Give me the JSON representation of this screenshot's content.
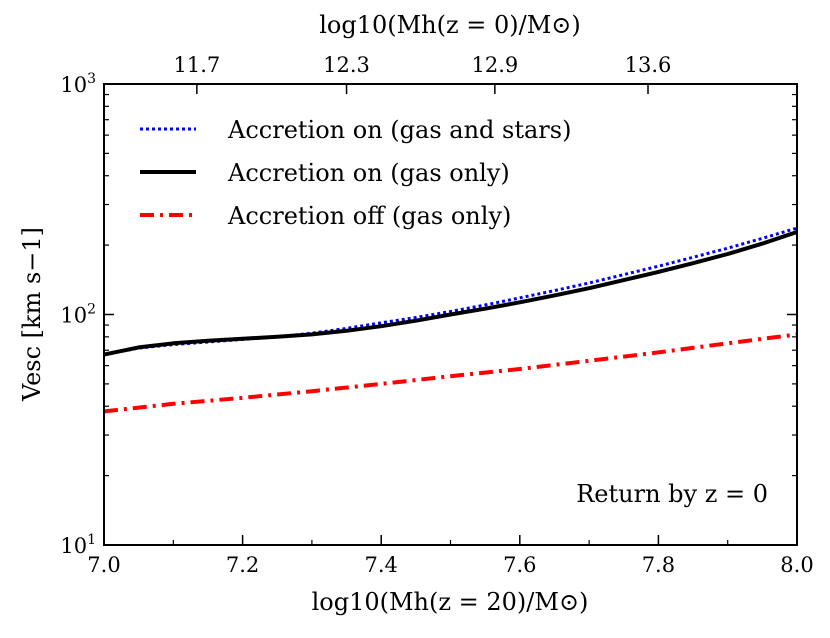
{
  "chart_data": {
    "type": "line",
    "yscale": "log",
    "xlim": [
      7.0,
      8.0
    ],
    "ylim": [
      10,
      1000
    ],
    "xlabel": "log10(Mh(z = 20)/M⊙)",
    "ylabel": "Vesc [km s−1]",
    "top_xlabel": "log10(Mh(z = 0)/M⊙)",
    "x_ticks": [
      7.0,
      7.2,
      7.4,
      7.6,
      7.8,
      8.0
    ],
    "x_tick_labels": [
      "7.0",
      "7.2",
      "7.4",
      "7.6",
      "7.8",
      "8.0"
    ],
    "y_ticks": [
      10,
      100,
      1000
    ],
    "y_tick_labels": [
      {
        "base": "10",
        "exp": "1"
      },
      {
        "base": "10",
        "exp": "2"
      },
      {
        "base": "10",
        "exp": "3"
      }
    ],
    "top_ticks": [
      {
        "x": 7.134,
        "label": "11.7"
      },
      {
        "x": 7.35,
        "label": "12.3"
      },
      {
        "x": 7.564,
        "label": "12.9"
      },
      {
        "x": 7.785,
        "label": "13.6"
      }
    ],
    "legend_position": "top-left",
    "annotation": "Return by z = 0",
    "series": [
      {
        "name": "Accretion on (gas and stars)",
        "color": "#0000ff",
        "style": "dotted",
        "x": [
          7.0,
          7.05,
          7.1,
          7.15,
          7.2,
          7.25,
          7.3,
          7.35,
          7.4,
          7.45,
          7.5,
          7.55,
          7.6,
          7.65,
          7.7,
          7.75,
          7.8,
          7.85,
          7.9,
          7.95,
          8.0
        ],
        "y": [
          67,
          71.5,
          74,
          76,
          78,
          80,
          83,
          87,
          92,
          97,
          103,
          110,
          118,
          127,
          137,
          149,
          162,
          177,
          194,
          214,
          237
        ]
      },
      {
        "name": "Accretion on (gas only)",
        "color": "#000000",
        "style": "solid",
        "x": [
          7.0,
          7.05,
          7.1,
          7.15,
          7.2,
          7.25,
          7.3,
          7.35,
          7.4,
          7.45,
          7.5,
          7.55,
          7.6,
          7.65,
          7.7,
          7.75,
          7.8,
          7.85,
          7.9,
          7.95,
          8.0
        ],
        "y": [
          67,
          72,
          75,
          77,
          78.5,
          80,
          82,
          85,
          89,
          94,
          100,
          106,
          113,
          121,
          130,
          141,
          153,
          167,
          183,
          203,
          228
        ]
      },
      {
        "name": "Accretion off (gas only)",
        "color": "#ff0000",
        "style": "dashdot",
        "x": [
          7.0,
          7.1,
          7.2,
          7.3,
          7.4,
          7.5,
          7.6,
          7.7,
          7.8,
          7.9,
          8.0
        ],
        "y": [
          38,
          41,
          43.5,
          46.5,
          50,
          54,
          58,
          63,
          68.5,
          75,
          82
        ]
      }
    ]
  }
}
